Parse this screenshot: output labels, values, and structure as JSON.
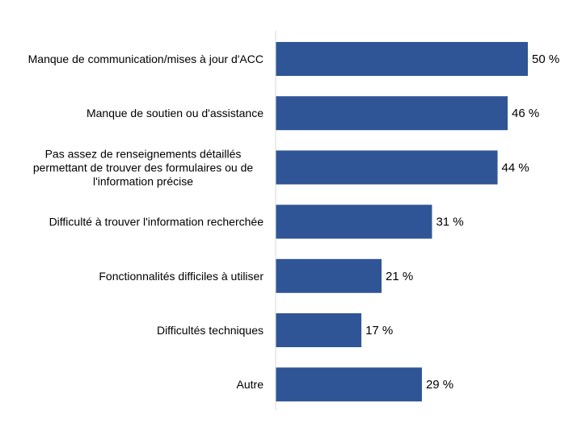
{
  "chart_data": {
    "type": "bar",
    "orientation": "horizontal",
    "categories": [
      "Manque de communication/mises à jour d'ACC",
      "Manque de soutien ou d'assistance",
      "Pas assez de renseignements détaillés\npermettant de trouver des formulaires ou de\nl'information précise",
      "Difficulté à trouver l'information recherchée",
      "Fonctionnalités difficiles à utiliser",
      "Difficultés techniques",
      "Autre"
    ],
    "values": [
      50,
      46,
      44,
      31,
      21,
      17,
      29
    ],
    "value_labels": [
      "50 %",
      "46 %",
      "44 %",
      "31 %",
      "21 %",
      "17 %",
      "29 %"
    ],
    "unit": "%",
    "xlim": [
      0,
      50
    ],
    "grid": false,
    "legend": "none",
    "bar_color": "#2f5597",
    "axis_color": "#d9d9d9"
  }
}
